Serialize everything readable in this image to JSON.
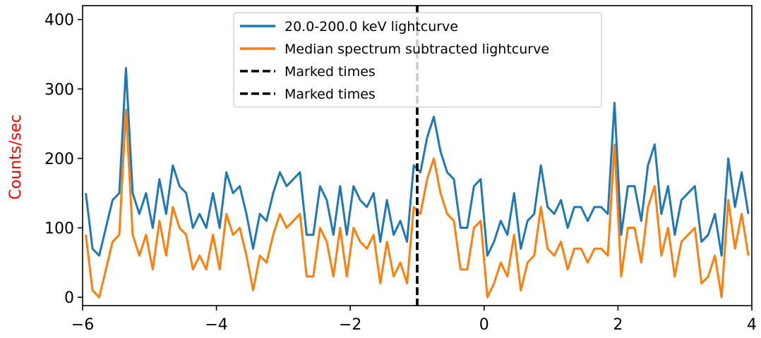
{
  "chart_data": {
    "type": "line",
    "title": "",
    "xlabel": "",
    "ylabel": "Counts/sec",
    "ylabel_color": "#ff0000",
    "xlim": [
      -6,
      4
    ],
    "ylim": [
      -12,
      420
    ],
    "xticks": [
      -6,
      -4,
      -2,
      0,
      2,
      4
    ],
    "xtick_labels": [
      "−6",
      "−4",
      "−2",
      "0",
      "2",
      "4"
    ],
    "yticks": [
      0,
      100,
      200,
      300,
      400
    ],
    "ytick_labels": [
      "0",
      "100",
      "200",
      "300",
      "400"
    ],
    "grid": false,
    "legend_position": "top-center",
    "x": [
      -5.952,
      -5.852,
      -5.752,
      -5.652,
      -5.552,
      -5.452,
      -5.352,
      -5.252,
      -5.152,
      -5.052,
      -4.952,
      -4.852,
      -4.752,
      -4.652,
      -4.552,
      -4.452,
      -4.352,
      -4.252,
      -4.152,
      -4.052,
      -3.952,
      -3.852,
      -3.752,
      -3.652,
      -3.552,
      -3.452,
      -3.352,
      -3.252,
      -3.152,
      -3.052,
      -2.952,
      -2.852,
      -2.752,
      -2.652,
      -2.552,
      -2.452,
      -2.352,
      -2.252,
      -2.152,
      -2.052,
      -1.952,
      -1.852,
      -1.752,
      -1.652,
      -1.552,
      -1.452,
      -1.352,
      -1.252,
      -1.152,
      -1.052,
      -0.952,
      -0.852,
      -0.752,
      -0.652,
      -0.552,
      -0.452,
      -0.352,
      -0.252,
      -0.152,
      -0.052,
      0.048,
      0.148,
      0.248,
      0.348,
      0.448,
      0.548,
      0.648,
      0.748,
      0.848,
      0.948,
      1.048,
      1.148,
      1.248,
      1.348,
      1.448,
      1.548,
      1.648,
      1.748,
      1.848,
      1.948,
      2.048,
      2.148,
      2.248,
      2.348,
      2.448,
      2.548,
      2.648,
      2.748,
      2.848,
      2.948,
      3.048,
      3.148,
      3.248,
      3.348,
      3.448,
      3.548,
      3.648,
      3.748,
      3.848,
      3.948
    ],
    "series": [
      {
        "name": "20.0-200.0 keV lightcurve",
        "color": "#1f77b4",
        "values": [
          150,
          70,
          60,
          100,
          140,
          150,
          330,
          150,
          120,
          150,
          100,
          170,
          120,
          190,
          160,
          150,
          100,
          120,
          100,
          150,
          100,
          180,
          150,
          160,
          120,
          70,
          120,
          110,
          150,
          180,
          160,
          170,
          180,
          90,
          90,
          160,
          140,
          90,
          160,
          90,
          160,
          140,
          130,
          150,
          80,
          140,
          90,
          110,
          80,
          190,
          180,
          230,
          260,
          210,
          180,
          170,
          100,
          100,
          160,
          170,
          60,
          80,
          110,
          90,
          150,
          70,
          110,
          120,
          190,
          130,
          120,
          140,
          100,
          130,
          130,
          110,
          130,
          130,
          120,
          280,
          90,
          160,
          160,
          110,
          190,
          220,
          120,
          160,
          90,
          140,
          150,
          160,
          80,
          90,
          120,
          60,
          200,
          130,
          180,
          120
        ]
      },
      {
        "name": "Median spectrum subtracted lightcurve",
        "color": "#ff7f0e",
        "values": [
          90,
          10,
          0,
          40,
          80,
          90,
          270,
          90,
          60,
          90,
          40,
          110,
          60,
          130,
          100,
          90,
          40,
          60,
          40,
          90,
          40,
          120,
          90,
          100,
          60,
          10,
          60,
          50,
          90,
          120,
          100,
          110,
          120,
          30,
          30,
          100,
          80,
          30,
          100,
          30,
          100,
          80,
          70,
          90,
          20,
          80,
          30,
          50,
          20,
          130,
          120,
          170,
          200,
          150,
          120,
          110,
          40,
          40,
          100,
          110,
          0,
          20,
          50,
          30,
          90,
          10,
          50,
          60,
          130,
          70,
          60,
          80,
          40,
          70,
          70,
          50,
          70,
          70,
          60,
          220,
          30,
          100,
          100,
          50,
          130,
          160,
          60,
          100,
          30,
          80,
          90,
          100,
          20,
          30,
          60,
          0,
          140,
          70,
          120,
          60
        ]
      }
    ],
    "marked_times": [
      {
        "name": "Marked times",
        "x": -1.0,
        "color": "#000000"
      },
      {
        "name": "Marked times",
        "x": -1.0,
        "color": "#000000"
      }
    ]
  }
}
